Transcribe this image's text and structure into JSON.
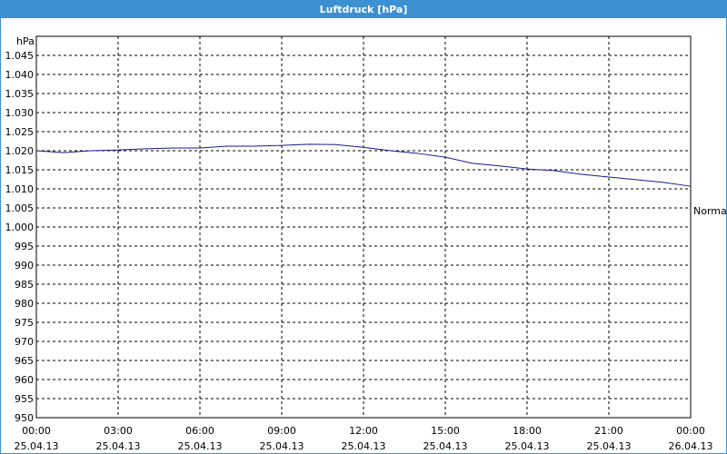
{
  "chart_data": {
    "type": "line",
    "title": "Luftdruck [hPa]",
    "y_label": "hPa",
    "annotation": "Normal",
    "x": [
      0,
      1,
      2,
      3,
      4,
      5,
      6,
      7,
      8,
      9,
      10,
      11,
      12,
      13,
      14,
      15,
      16,
      17,
      18,
      19,
      20,
      21,
      22,
      23,
      24
    ],
    "series": [
      {
        "name": "Luftdruck",
        "color": "#1a1a8c",
        "values": [
          1020.0,
          1019.5,
          1020.0,
          1020.2,
          1020.5,
          1020.7,
          1020.7,
          1021.2,
          1021.2,
          1021.4,
          1021.7,
          1021.6,
          1020.9,
          1020.0,
          1019.3,
          1018.3,
          1016.7,
          1016.0,
          1015.2,
          1014.8,
          1013.8,
          1013.1,
          1012.4,
          1011.7,
          1010.7
        ]
      }
    ],
    "xlim": [
      0,
      24
    ],
    "xticks": [
      {
        "value": 0,
        "label": "00:00",
        "date": "25.04.13"
      },
      {
        "value": 3,
        "label": "03:00",
        "date": "25.04.13"
      },
      {
        "value": 6,
        "label": "06:00",
        "date": "25.04.13"
      },
      {
        "value": 9,
        "label": "09:00",
        "date": "25.04.13"
      },
      {
        "value": 12,
        "label": "12:00",
        "date": "25.04.13"
      },
      {
        "value": 15,
        "label": "15:00",
        "date": "25.04.13"
      },
      {
        "value": 18,
        "label": "18:00",
        "date": "25.04.13"
      },
      {
        "value": 21,
        "label": "21:00",
        "date": "25.04.13"
      },
      {
        "value": 24,
        "label": "00:00",
        "date": "26.04.13"
      }
    ],
    "ylim": [
      950,
      1050
    ],
    "yticks": [
      950,
      955,
      960,
      965,
      970,
      975,
      980,
      985,
      990,
      995,
      {
        "value": 1000,
        "label": "1.000"
      },
      {
        "value": 1005,
        "label": "1.005"
      },
      {
        "value": 1010,
        "label": "1.010"
      },
      {
        "value": 1015,
        "label": "1.015"
      },
      {
        "value": 1020,
        "label": "1.020"
      },
      {
        "value": 1025,
        "label": "1.025"
      },
      {
        "value": 1030,
        "label": "1.030"
      },
      {
        "value": 1035,
        "label": "1.035"
      },
      {
        "value": 1040,
        "label": "1.040"
      },
      {
        "value": 1045,
        "label": "1.045"
      }
    ],
    "grid": true
  }
}
